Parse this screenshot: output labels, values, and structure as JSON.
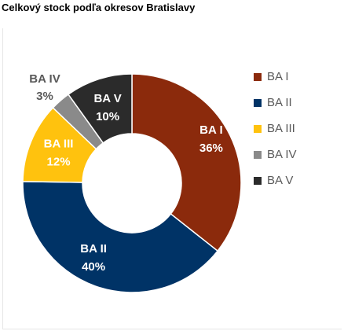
{
  "chart_data": {
    "type": "pie",
    "variant": "donut",
    "title": "Celkový stock podľa okresov Bratislavy",
    "categories": [
      "BA I",
      "BA II",
      "BA III",
      "BA IV",
      "BA V"
    ],
    "values": [
      36,
      40,
      12,
      3,
      10
    ],
    "value_labels": [
      "36%",
      "40%",
      "12%",
      "3%",
      "10%"
    ],
    "colors": [
      "#8b2a0c",
      "#003366",
      "#ffc20e",
      "#8a8a8a",
      "#2b2b2b"
    ],
    "legend": {
      "placement": "right",
      "labels": [
        "BA I",
        "BA II",
        "BA III",
        "BA IV",
        "BA V"
      ]
    }
  }
}
